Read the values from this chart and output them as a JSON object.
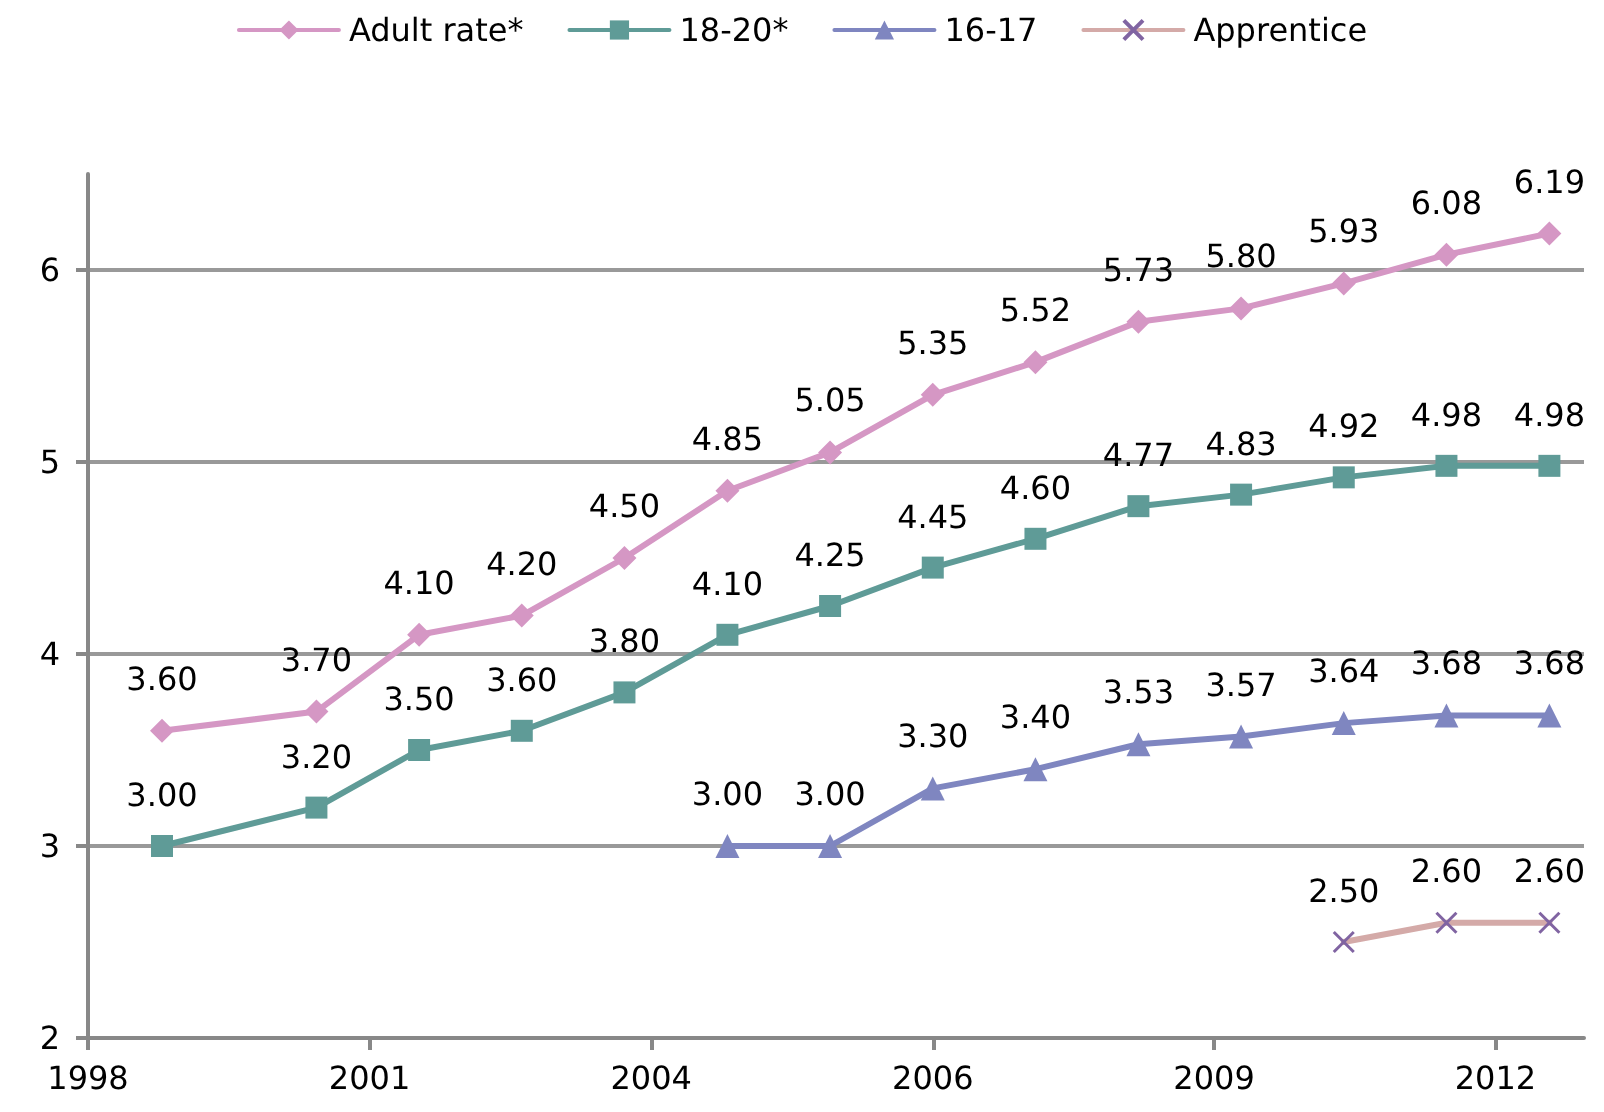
{
  "chart_data": {
    "type": "line",
    "legend": "top",
    "grid": "y",
    "ylim": [
      2,
      6.5
    ],
    "yticks": [
      2,
      3,
      4,
      5,
      6
    ],
    "xlim": [
      "1998-07-12",
      "2013-02-01"
    ],
    "xticks": [
      {
        "value": "1998-07-12",
        "label": "1998"
      },
      {
        "value": "2001-04-08",
        "label": "2001"
      },
      {
        "value": "2004-01-04",
        "label": "2004"
      },
      {
        "value": "2006-10-01",
        "label": "2006"
      },
      {
        "value": "2009-06-27",
        "label": "2009"
      },
      {
        "value": "2012-03-23",
        "label": "2012"
      }
    ],
    "series": [
      {
        "name": "Adult rate*",
        "color": "#d597c4",
        "marker": "diamond",
        "x": [
          "1999-04-01",
          "2000-10-01",
          "2001-10-01",
          "2002-10-01",
          "2003-10-01",
          "2004-10-01",
          "2005-10-01",
          "2006-10-01",
          "2007-10-01",
          "2008-10-01",
          "2009-10-01",
          "2010-10-01",
          "2011-10-01",
          "2012-10-01"
        ],
        "values": [
          3.6,
          3.7,
          4.1,
          4.2,
          4.5,
          4.85,
          5.05,
          5.35,
          5.52,
          5.73,
          5.8,
          5.93,
          6.08,
          6.19
        ],
        "value_labels": [
          "3.60",
          "3.70",
          "4.10",
          "4.20",
          "4.50",
          "4.85",
          "5.05",
          "5.35",
          "5.52",
          "5.73",
          "5.80",
          "5.93",
          "6.08",
          "6.19"
        ]
      },
      {
        "name": "18-20*",
        "color": "#5f9b97",
        "marker": "square",
        "x": [
          "1999-04-01",
          "2000-10-01",
          "2001-10-01",
          "2002-10-01",
          "2003-10-01",
          "2004-10-01",
          "2005-10-01",
          "2006-10-01",
          "2007-10-01",
          "2008-10-01",
          "2009-10-01",
          "2010-10-01",
          "2011-10-01",
          "2012-10-01"
        ],
        "values": [
          3.0,
          3.2,
          3.5,
          3.6,
          3.8,
          4.1,
          4.25,
          4.45,
          4.6,
          4.77,
          4.83,
          4.92,
          4.98,
          4.98
        ],
        "value_labels": [
          "3.00",
          "3.20",
          "3.50",
          "3.60",
          "3.80",
          "4.10",
          "4.25",
          "4.45",
          "4.60",
          "4.77",
          "4.83",
          "4.92",
          "4.98",
          "4.98"
        ]
      },
      {
        "name": "16-17",
        "color": "#7f86c0",
        "marker": "triangle",
        "x": [
          "2004-10-01",
          "2005-10-01",
          "2006-10-01",
          "2007-10-01",
          "2008-10-01",
          "2009-10-01",
          "2010-10-01",
          "2011-10-01",
          "2012-10-01"
        ],
        "values": [
          3.0,
          3.0,
          3.3,
          3.4,
          3.53,
          3.57,
          3.64,
          3.68,
          3.68
        ],
        "value_labels": [
          "3.00",
          "3.00",
          "3.30",
          "3.40",
          "3.53",
          "3.57",
          "3.64",
          "3.68",
          "3.68"
        ]
      },
      {
        "name": "Apprentice",
        "color": "#d4aaa8",
        "marker": "cross",
        "x": [
          "2010-10-01",
          "2011-10-01",
          "2012-10-01"
        ],
        "values": [
          2.5,
          2.6,
          2.6
        ],
        "value_labels": [
          "2.50",
          "2.60",
          "2.60"
        ]
      }
    ]
  }
}
